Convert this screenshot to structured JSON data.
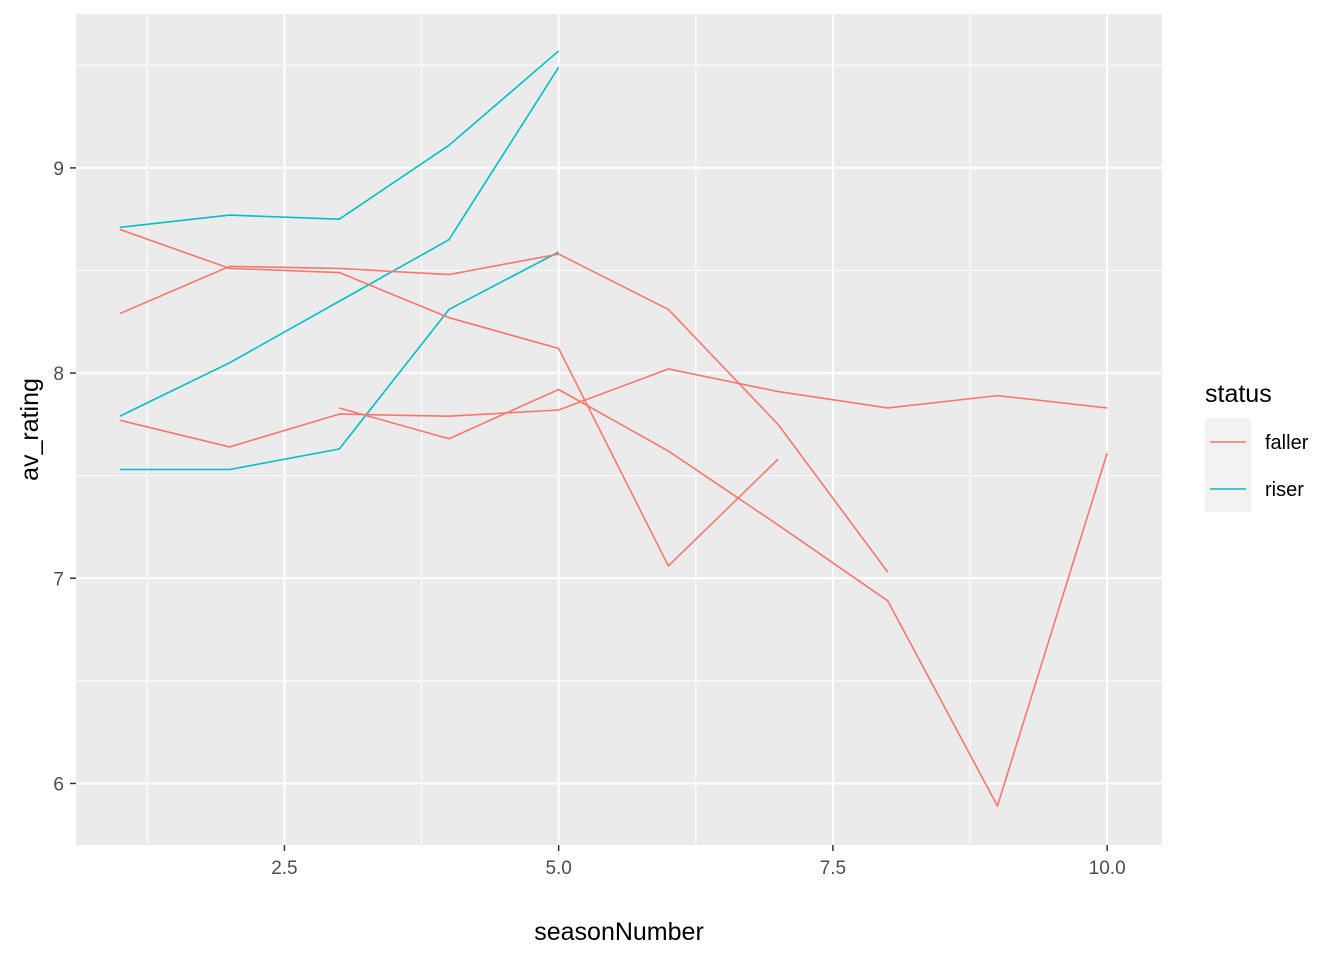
{
  "chart_data": {
    "type": "line",
    "xlabel": "seasonNumber",
    "ylabel": "av_rating",
    "xlim": [
      0.6,
      10.5
    ],
    "ylim": [
      5.7,
      9.75
    ],
    "x_ticks": [
      2.5,
      5.0,
      7.5,
      10.0
    ],
    "x_tick_labels": [
      "2.5",
      "5.0",
      "7.5",
      "10.0"
    ],
    "y_ticks": [
      6,
      7,
      8,
      9
    ],
    "y_tick_labels": [
      "6",
      "7",
      "8",
      "9"
    ],
    "grid": true,
    "legend": {
      "title": "status",
      "position": "right",
      "entries": [
        {
          "label": "faller",
          "color": "#F8766D"
        },
        {
          "label": "riser",
          "color": "#00BFC4"
        }
      ]
    },
    "series": [
      {
        "group": "riser",
        "color": "#00BFC4",
        "x": [
          1,
          2,
          3,
          4,
          5
        ],
        "y": [
          8.71,
          8.77,
          8.75,
          9.11,
          9.57
        ]
      },
      {
        "group": "riser",
        "color": "#00BFC4",
        "x": [
          1,
          2,
          3,
          4,
          5
        ],
        "y": [
          7.79,
          8.05,
          8.35,
          8.65,
          9.49
        ]
      },
      {
        "group": "riser",
        "color": "#00BFC4",
        "x": [
          1,
          2,
          3,
          4,
          5
        ],
        "y": [
          7.53,
          7.53,
          7.63,
          8.31,
          8.59
        ]
      },
      {
        "group": "faller",
        "color": "#F8766D",
        "x": [
          1,
          2,
          3,
          4,
          5,
          6,
          7,
          8
        ],
        "y": [
          8.7,
          8.51,
          8.49,
          8.27,
          8.12,
          7.06,
          7.58,
          null
        ]
      },
      {
        "group": "faller",
        "color": "#F8766D",
        "x": [
          1,
          2,
          3,
          4,
          5,
          6,
          7,
          8
        ],
        "y": [
          8.29,
          8.52,
          8.51,
          8.48,
          8.58,
          8.31,
          7.75,
          7.03
        ]
      },
      {
        "group": "faller",
        "color": "#F8766D",
        "x": [
          1,
          2,
          3,
          4,
          5,
          6,
          7,
          8,
          9,
          10
        ],
        "y": [
          7.77,
          7.64,
          7.8,
          7.79,
          7.82,
          8.02,
          7.91,
          7.83,
          7.89,
          7.83
        ]
      },
      {
        "group": "faller",
        "color": "#F8766D",
        "x": [
          3,
          4,
          5,
          6,
          7,
          8,
          9,
          10
        ],
        "y": [
          7.83,
          7.68,
          7.92,
          7.62,
          7.26,
          6.89,
          5.89,
          7.61
        ]
      }
    ]
  }
}
